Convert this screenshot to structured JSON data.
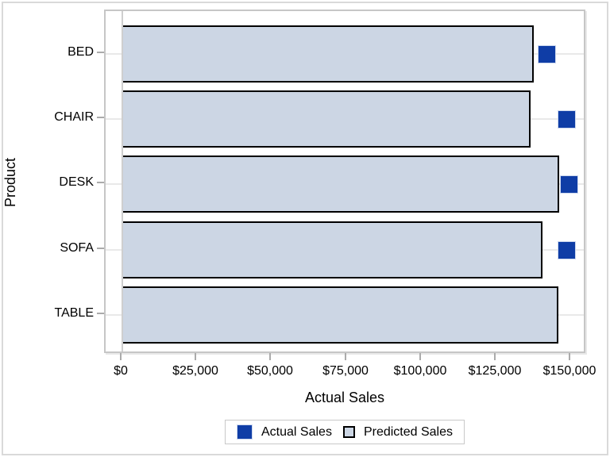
{
  "chart_data": {
    "type": "bar",
    "orientation": "horizontal",
    "title": "",
    "xlabel": "Actual Sales",
    "ylabel": "Product",
    "categories": [
      "BED",
      "CHAIR",
      "DESK",
      "SOFA",
      "TABLE"
    ],
    "series": [
      {
        "name": "Predicted Sales",
        "display": "bar",
        "color": "#ccd6e4",
        "outline_color": "#000000",
        "values": [
          137800,
          136600,
          146300,
          140500,
          146000
        ]
      },
      {
        "name": "Actual Sales",
        "display": "square-marker",
        "color": "#0f3da6",
        "values": [
          142100,
          148500,
          149500,
          148500,
          null
        ]
      }
    ],
    "x_ticks": [
      "$0",
      "$25,000",
      "$50,000",
      "$75,000",
      "$100,000",
      "$125,000",
      "$150,000"
    ],
    "x_tick_values": [
      0,
      25000,
      50000,
      75000,
      100000,
      125000,
      150000
    ],
    "xlim": [
      0,
      150000
    ],
    "grid": "faint horizontal line at each category center",
    "legend": {
      "position": "bottom-center",
      "entries": [
        {
          "label": "Actual Sales",
          "swatch": "filled dark blue square"
        },
        {
          "label": "Predicted Sales",
          "swatch": "light blue square with black outline"
        }
      ]
    }
  },
  "colors": {
    "bar_fill": "#ccd6e4",
    "bar_outline": "#000000",
    "marker_fill": "#0f3da6",
    "plot_frame": "#c6c6c6",
    "figure_border": "#d9d9d9",
    "gridline": "#e9e9e9",
    "tick": "#ababab",
    "background": "#ffffff"
  }
}
